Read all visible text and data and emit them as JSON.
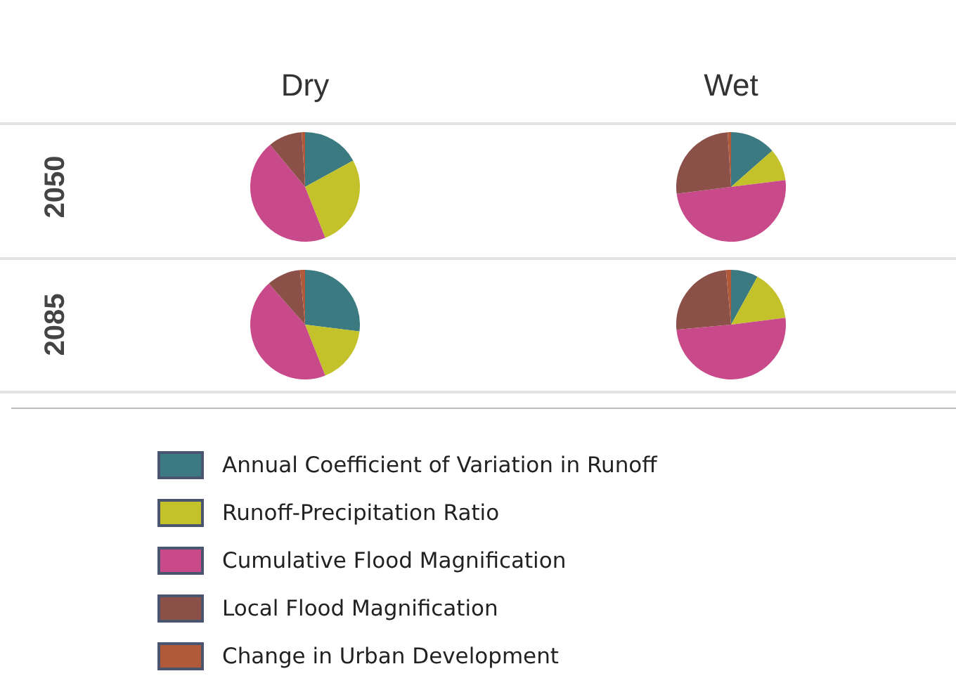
{
  "chart_data": [
    {
      "type": "pie",
      "title": "Dry",
      "ylabel": "2050",
      "legend": "bottom",
      "categories": [
        "Annual Coefficient of Variation in Runoff",
        "Runoff-Precipitation Ratio",
        "Cumulative Flood Magnification",
        "Local Flood Magnification",
        "Change in Urban Development"
      ],
      "values": [
        17,
        27,
        45,
        10,
        1
      ],
      "colors": [
        "#3a7a80",
        "#c3c22a",
        "#c84a8a",
        "#8b5048",
        "#b05a3a"
      ]
    },
    {
      "type": "pie",
      "title": "Wet",
      "values": [
        13.5,
        9.5,
        50,
        26,
        1
      ],
      "colors": [
        "#3a7a80",
        "#c3c22a",
        "#c84a8a",
        "#8b5048",
        "#b05a3a"
      ]
    },
    {
      "type": "pie",
      "ylabel": "2085",
      "values": [
        27,
        17,
        44.5,
        10,
        1.5
      ],
      "colors": [
        "#3a7a80",
        "#c3c22a",
        "#c84a8a",
        "#8b5048",
        "#b05a3a"
      ]
    },
    {
      "type": "pie",
      "values": [
        8,
        15,
        50.5,
        25,
        1.5
      ],
      "colors": [
        "#3a7a80",
        "#c3c22a",
        "#c84a8a",
        "#8b5048",
        "#b05a3a"
      ]
    }
  ]
}
